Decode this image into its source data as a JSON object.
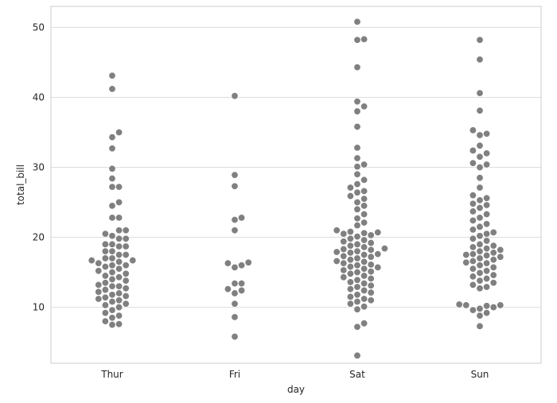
{
  "chart_data": {
    "type": "scatter",
    "style": "swarm",
    "xlabel": "day",
    "ylabel": "total_bill",
    "categories": [
      "Thur",
      "Fri",
      "Sat",
      "Sun"
    ],
    "ylim": [
      2,
      53
    ],
    "yticks": [
      10,
      20,
      30,
      40,
      50
    ],
    "grid": "horizontal",
    "point_color": "#808080",
    "grid_color": "#dddddd",
    "frame_color": "#cccccc",
    "background": "#ffffff",
    "series": [
      {
        "category": "Thur",
        "values": [
          43.1,
          41.2,
          35.0,
          34.3,
          32.7,
          29.8,
          28.4,
          27.2,
          27.2,
          25.0,
          24.5,
          22.8,
          22.8,
          21.0,
          21.0,
          20.5,
          20.2,
          19.8,
          19.8,
          19.0,
          19.0,
          18.7,
          18.7,
          18.0,
          18.0,
          17.5,
          17.5,
          17.0,
          17.0,
          16.7,
          16.7,
          16.5,
          16.3,
          16.0,
          16.0,
          15.8,
          15.5,
          15.2,
          15.0,
          14.8,
          14.5,
          14.3,
          14.0,
          13.8,
          13.5,
          13.2,
          13.0,
          13.0,
          12.7,
          12.5,
          12.2,
          12.0,
          11.8,
          11.6,
          11.4,
          11.2,
          11.0,
          10.8,
          10.5,
          10.3,
          10.0,
          9.6,
          9.2,
          8.8,
          8.5,
          8.0,
          7.6,
          7.5
        ]
      },
      {
        "category": "Fri",
        "values": [
          40.2,
          28.9,
          27.3,
          22.8,
          22.5,
          21.0,
          16.4,
          16.3,
          16.0,
          15.7,
          13.4,
          13.4,
          12.6,
          12.4,
          12.0,
          10.5,
          8.6,
          5.8
        ]
      },
      {
        "category": "Sat",
        "values": [
          50.8,
          48.3,
          48.2,
          44.3,
          39.4,
          38.7,
          38.0,
          35.8,
          32.8,
          31.3,
          30.4,
          30.1,
          29.0,
          28.2,
          27.6,
          27.1,
          26.6,
          26.4,
          25.9,
          25.5,
          25.0,
          24.5,
          24.0,
          23.3,
          22.7,
          22.1,
          21.7,
          21.0,
          20.8,
          20.7,
          20.6,
          20.5,
          20.3,
          20.1,
          19.8,
          19.6,
          19.4,
          19.2,
          19.0,
          18.8,
          18.6,
          18.4,
          18.3,
          18.2,
          18.0,
          17.9,
          17.8,
          17.6,
          17.5,
          17.3,
          17.2,
          17.0,
          16.8,
          16.6,
          16.5,
          16.3,
          16.1,
          16.0,
          15.8,
          15.7,
          15.5,
          15.3,
          15.1,
          15.0,
          14.8,
          14.5,
          14.3,
          14.1,
          13.9,
          13.6,
          13.4,
          13.1,
          12.9,
          12.6,
          12.4,
          12.1,
          11.8,
          11.5,
          11.2,
          11.0,
          10.8,
          10.5,
          10.1,
          9.7,
          7.7,
          7.2,
          3.1
        ]
      },
      {
        "category": "Sun",
        "values": [
          48.2,
          45.4,
          40.6,
          38.1,
          35.3,
          34.8,
          34.6,
          33.1,
          32.4,
          32.0,
          31.5,
          30.6,
          30.4,
          30.0,
          28.5,
          27.1,
          26.0,
          25.6,
          25.3,
          24.8,
          24.6,
          24.2,
          23.7,
          23.3,
          22.8,
          22.4,
          21.9,
          21.5,
          21.1,
          20.7,
          20.5,
          20.2,
          19.8,
          19.5,
          19.0,
          18.8,
          18.6,
          18.4,
          18.2,
          18.0,
          17.8,
          17.6,
          17.5,
          17.4,
          17.2,
          17.0,
          16.8,
          16.6,
          16.4,
          16.3,
          16.0,
          15.7,
          15.5,
          15.2,
          14.9,
          14.6,
          14.4,
          14.1,
          13.8,
          13.5,
          13.2,
          12.9,
          12.7,
          10.4,
          10.3,
          10.3,
          10.2,
          10.0,
          9.8,
          9.6,
          9.2,
          8.8,
          7.3
        ]
      }
    ]
  }
}
